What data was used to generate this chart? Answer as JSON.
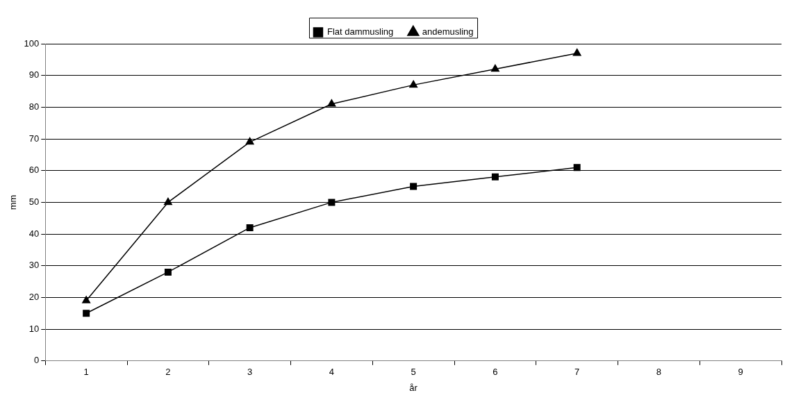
{
  "chart_data": {
    "type": "line",
    "xlabel": "år",
    "ylabel": "mm",
    "categories": [
      "1",
      "2",
      "3",
      "4",
      "5",
      "6",
      "7",
      "8",
      "9"
    ],
    "series": [
      {
        "name": "Flat dammusling",
        "color": "#000000",
        "marker": "square",
        "values": [
          15,
          28,
          42,
          50,
          55,
          58,
          61,
          null,
          null
        ]
      },
      {
        "name": "andemusling",
        "color": "#000000",
        "marker": "triangle",
        "values": [
          19,
          50,
          69,
          81,
          87,
          92,
          97,
          null,
          null
        ]
      }
    ],
    "ylim": [
      0,
      100
    ],
    "yticks": [
      0,
      10,
      20,
      30,
      40,
      50,
      60,
      70,
      80,
      90,
      100
    ],
    "grid": "y",
    "legend": "top",
    "line_style": "solid"
  }
}
